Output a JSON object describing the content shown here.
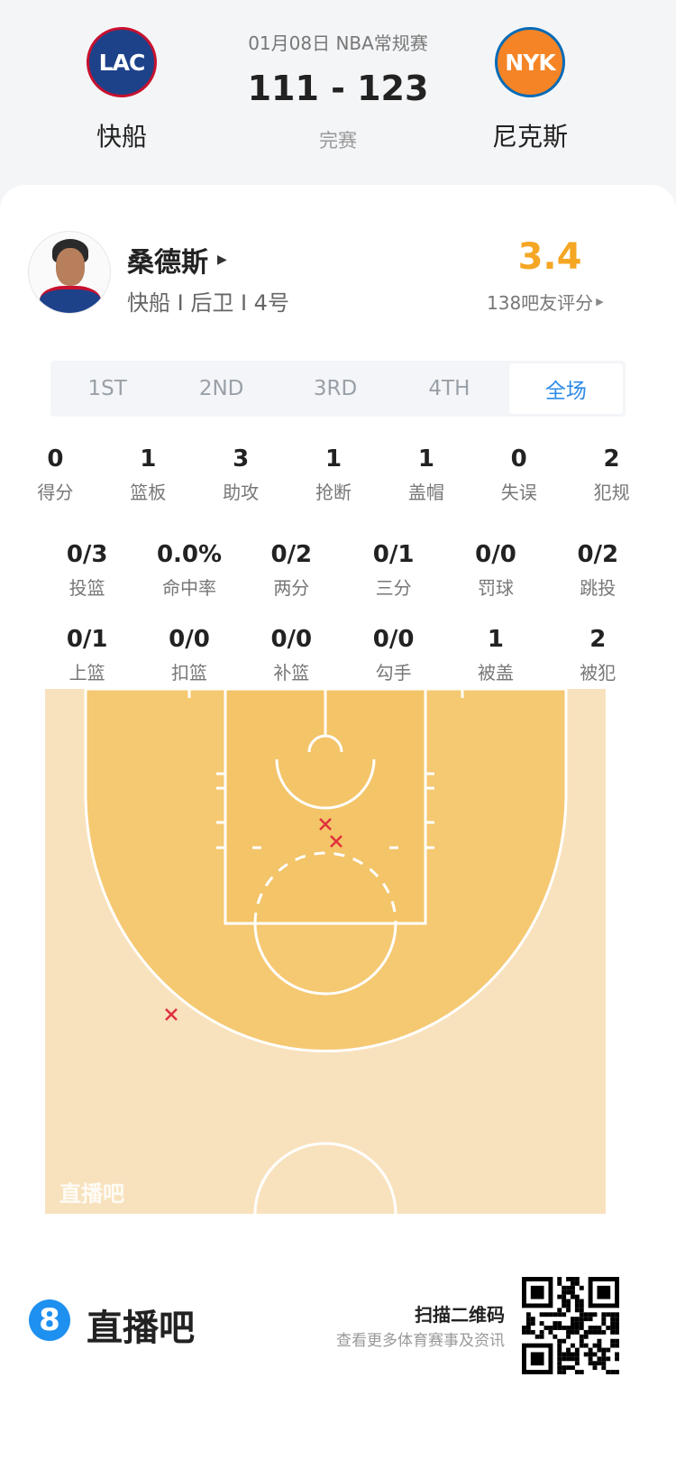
{
  "match": {
    "date_type": "01月08日 NBA常规赛",
    "score": "111 - 123",
    "status": "完赛",
    "home": {
      "abbr": "LAC",
      "name": "快船"
    },
    "away": {
      "abbr": "NYK",
      "name": "尼克斯"
    }
  },
  "player": {
    "name": "桑德斯",
    "info": "快船 I 后卫 I 4号",
    "rating": "3.4",
    "rating_count": "138吧友评分"
  },
  "tabs": [
    {
      "label": "1ST"
    },
    {
      "label": "2ND"
    },
    {
      "label": "3RD"
    },
    {
      "label": "4TH"
    },
    {
      "label": "全场",
      "active": true
    }
  ],
  "stats_row1": [
    {
      "v": "0",
      "l": "得分"
    },
    {
      "v": "1",
      "l": "篮板"
    },
    {
      "v": "3",
      "l": "助攻"
    },
    {
      "v": "1",
      "l": "抢断"
    },
    {
      "v": "1",
      "l": "盖帽"
    },
    {
      "v": "0",
      "l": "失误"
    },
    {
      "v": "2",
      "l": "犯规"
    }
  ],
  "stats_row2": [
    {
      "v": "0/3",
      "l": "投篮"
    },
    {
      "v": "0.0%",
      "l": "命中率"
    },
    {
      "v": "0/2",
      "l": "两分"
    },
    {
      "v": "0/1",
      "l": "三分"
    },
    {
      "v": "0/0",
      "l": "罚球"
    },
    {
      "v": "0/2",
      "l": "跳投"
    }
  ],
  "stats_row3": [
    {
      "v": "0/1",
      "l": "上篮"
    },
    {
      "v": "0/0",
      "l": "扣篮"
    },
    {
      "v": "0/0",
      "l": "补篮"
    },
    {
      "v": "0/0",
      "l": "勾手"
    },
    {
      "v": "1",
      "l": "被盖"
    },
    {
      "v": "2",
      "l": "被犯"
    }
  ],
  "shot_chart": {
    "watermark": "直播吧",
    "shots": [
      {
        "result": "miss"
      },
      {
        "result": "miss"
      },
      {
        "result": "miss"
      }
    ]
  },
  "footer": {
    "brand": "直播吧",
    "scan": "扫描二维码",
    "sub": "查看更多体育赛事及资讯"
  },
  "colors": {
    "accent": "#2e8be8",
    "rating": "#f5a623",
    "miss": "#e0303c",
    "court_inner": "#f5c872",
    "court_outer": "#f8e2bd"
  }
}
